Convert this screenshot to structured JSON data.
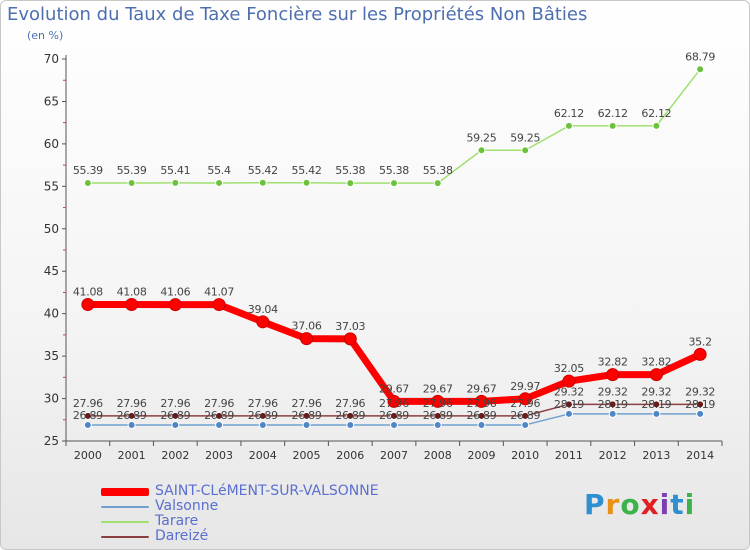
{
  "title": "Evolution du Taux de Taxe Foncière sur les Propriétés Non Bâties",
  "unit": "(en %)",
  "logo": {
    "text": "Proxiti",
    "colors": [
      "#2e8fd1",
      "#e89018",
      "#3bb34a",
      "#e02020",
      "#7b3fb2",
      "#2e8fd1",
      "#3bb34a"
    ]
  },
  "chart_data": {
    "type": "line",
    "title": "Evolution du Taux de Taxe Foncière sur les Propriétés Non Bâties",
    "ylabel": "(en %)",
    "xlabel": "",
    "ylim": [
      25,
      70
    ],
    "yticks": [
      25,
      30,
      35,
      40,
      45,
      50,
      55,
      60,
      65,
      70
    ],
    "grid": false,
    "x": [
      "2000",
      "2001",
      "2002",
      "2003",
      "2004",
      "2005",
      "2006",
      "2007",
      "2008",
      "2009",
      "2010",
      "2011",
      "2012",
      "2013",
      "2014"
    ],
    "series": [
      {
        "name": "SAINT-CLéMENT-SUR-VALSONNE",
        "color": "#ff0000",
        "marker": "#ff0000",
        "width": 7,
        "values": [
          41.08,
          41.08,
          41.06,
          41.07,
          39.04,
          37.06,
          37.03,
          29.67,
          29.67,
          29.67,
          29.97,
          32.05,
          32.82,
          32.82,
          35.2
        ],
        "labels": [
          "41.08",
          "41.08",
          "41.06",
          "41.07",
          "39.04",
          "37.06",
          "37.03",
          "29.67",
          "29.67",
          "29.67",
          "29.97",
          "32.05",
          "32.82",
          "32.82",
          "35.2"
        ]
      },
      {
        "name": "Valsonne",
        "color": "#6fa0d0",
        "marker": "#4f86c6",
        "width": 1.5,
        "values": [
          26.89,
          26.89,
          26.89,
          26.89,
          26.89,
          26.89,
          26.89,
          26.89,
          26.89,
          26.89,
          26.89,
          28.19,
          28.19,
          28.19,
          28.19
        ],
        "labels": [
          "26.89",
          "26.89",
          "26.89",
          "26.89",
          "26.89",
          "26.89",
          "26.89",
          "26.89",
          "26.89",
          "26.89",
          "26.89",
          "28.19",
          "28.19",
          "28.19",
          "28.19"
        ]
      },
      {
        "name": "Tarare",
        "color": "#a0e070",
        "marker": "#6cc23a",
        "width": 1.5,
        "values": [
          55.39,
          55.39,
          55.41,
          55.4,
          55.42,
          55.42,
          55.38,
          55.38,
          55.38,
          59.25,
          59.25,
          62.12,
          62.12,
          62.12,
          68.79
        ],
        "labels": [
          "55.39",
          "55.39",
          "55.41",
          "55.4",
          "55.42",
          "55.42",
          "55.38",
          "55.38",
          "55.38",
          "59.25",
          "59.25",
          "62.12",
          "62.12",
          "62.12",
          "68.79"
        ]
      },
      {
        "name": "Dareizé",
        "color": "#8a4040",
        "marker": "#6a1a1a",
        "width": 1.5,
        "values": [
          27.96,
          27.96,
          27.96,
          27.96,
          27.96,
          27.96,
          27.96,
          27.96,
          27.96,
          27.96,
          27.96,
          29.32,
          29.32,
          29.32,
          29.32
        ],
        "labels": [
          "27.96",
          "27.96",
          "27.96",
          "27.96",
          "27.96",
          "27.96",
          "27.96",
          "27.96",
          "27.96",
          "27.96",
          "27.96",
          "29.32",
          "29.32",
          "29.32",
          "29.32"
        ]
      }
    ],
    "legend_position": "bottom-left"
  }
}
